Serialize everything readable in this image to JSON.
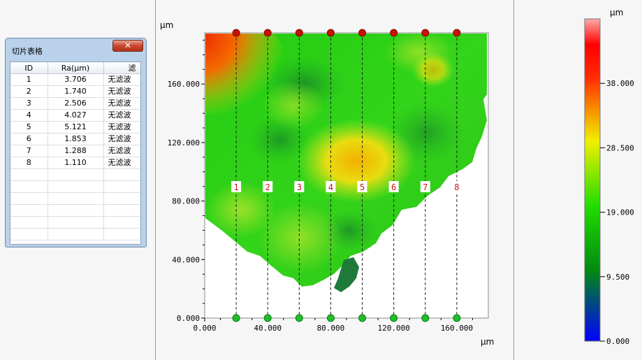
{
  "dialog": {
    "title": "切片表格",
    "close_icon": "close-icon",
    "columns": [
      "ID",
      "Ra(μm)",
      "滤"
    ],
    "rows": [
      {
        "id": "1",
        "ra": "3.706",
        "filter": "无滤波"
      },
      {
        "id": "2",
        "ra": "1.740",
        "filter": "无滤波"
      },
      {
        "id": "3",
        "ra": "2.506",
        "filter": "无滤波"
      },
      {
        "id": "4",
        "ra": "4.027",
        "filter": "无滤波"
      },
      {
        "id": "5",
        "ra": "5.121",
        "filter": "无滤波"
      },
      {
        "id": "6",
        "ra": "1.853",
        "filter": "无滤波"
      },
      {
        "id": "7",
        "ra": "1.288",
        "filter": "无滤波"
      },
      {
        "id": "8",
        "ra": "1.110",
        "filter": "无滤波"
      }
    ],
    "empty_rows": 6
  },
  "plot": {
    "y_unit": "μm",
    "x_unit": "μm",
    "x_ticks": [
      "0.000",
      "40.000",
      "80.000",
      "120.000",
      "160.000"
    ],
    "y_ticks": [
      "0.000",
      "40.000",
      "80.000",
      "120.000",
      "160.000"
    ],
    "x_range": [
      0,
      180
    ],
    "y_range": [
      0,
      195
    ],
    "slices": [
      {
        "label": "1",
        "x": 20
      },
      {
        "label": "2",
        "x": 40
      },
      {
        "label": "3",
        "x": 60
      },
      {
        "label": "4",
        "x": 80
      },
      {
        "label": "5",
        "x": 100
      },
      {
        "label": "6",
        "x": 120
      },
      {
        "label": "7",
        "x": 140
      },
      {
        "label": "8",
        "x": 160
      }
    ]
  },
  "colorbar": {
    "unit": "μm",
    "ticks": [
      "0.000",
      "9.500",
      "19.000",
      "28.500",
      "38.000"
    ],
    "colors": [
      "#0000ff",
      "#00aa00",
      "#22dd00",
      "#ffff00",
      "#ff0000",
      "#ffaaaa"
    ]
  }
}
